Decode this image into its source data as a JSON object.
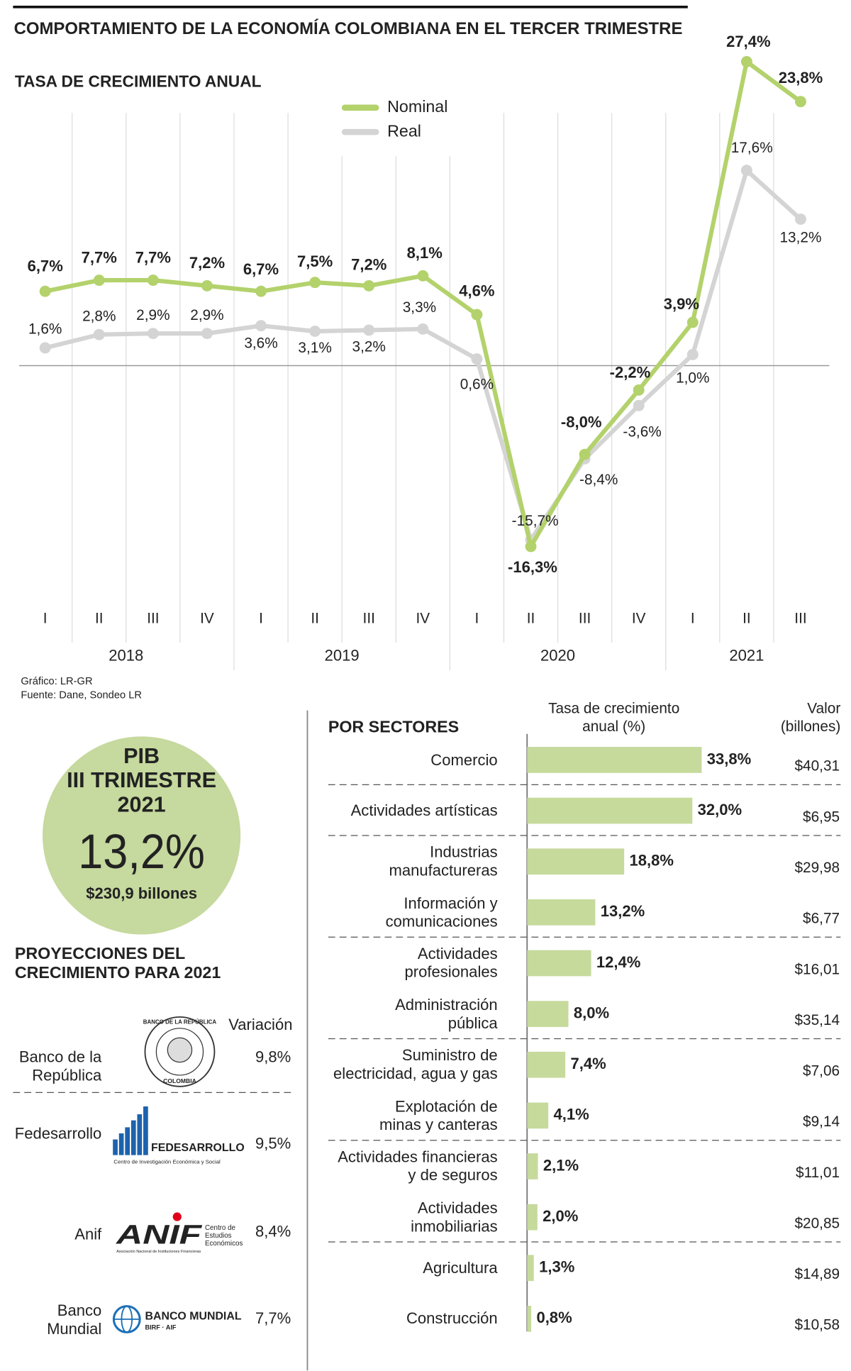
{
  "title": "COMPORTAMIENTO DE LA ECONOMÍA COLOMBIANA EN EL TERCER TRIMESTRE",
  "chart_data": [
    {
      "type": "line",
      "title": "TASA DE CRECIMIENTO ANUAL",
      "categories": [
        "I",
        "II",
        "III",
        "IV",
        "I",
        "II",
        "III",
        "IV",
        "I",
        "II",
        "III",
        "IV",
        "I",
        "II",
        "III"
      ],
      "years": [
        "2018",
        "2019",
        "2020",
        "2021"
      ],
      "series": [
        {
          "name": "Nominal",
          "color": "#b3d26c",
          "values": [
            6.7,
            7.7,
            7.7,
            7.2,
            6.7,
            7.5,
            7.2,
            8.1,
            4.6,
            -16.3,
            -8.0,
            -2.2,
            3.9,
            27.4,
            23.8
          ],
          "value_labels": [
            "6,7%",
            "7,7%",
            "7,7%",
            "7,2%",
            "6,7%",
            "7,5%",
            "7,2%",
            "8,1%",
            "4,6%",
            "-16,3%",
            "-8,0%",
            "-2,2%",
            "3,9%",
            "27,4%",
            "23,8%"
          ]
        },
        {
          "name": "Real",
          "color": "#d4d4d4",
          "values": [
            1.6,
            2.8,
            2.9,
            2.9,
            3.6,
            3.1,
            3.2,
            3.3,
            0.6,
            -15.7,
            -8.4,
            -3.6,
            1.0,
            17.6,
            13.2
          ],
          "value_labels": [
            "1,6%",
            "2,8%",
            "2,9%",
            "2,9%",
            "3,6%",
            "3,1%",
            "3,2%",
            "3,3%",
            "0,6%",
            "-15,7%",
            "-8,4%",
            "-3,6%",
            "1,0%",
            "17,6%",
            "13,2%"
          ]
        }
      ]
    },
    {
      "type": "barh",
      "title": "POR SECTORES",
      "value_axis_title": "Tasa de crecimiento\nanual (%)",
      "amount_title": "Valor\n(billones)",
      "color": "#c6da9c",
      "categories": [
        "Comercio",
        "Actividades artísticas",
        "Industrias\nmanufactureras",
        "Información y\ncomunicaciones",
        "Actividades\nprofesionales",
        "Administración\npública",
        "Suministro de\nelectricidad, agua y gas",
        "Explotación de\nminas y canteras",
        "Actividades financieras\ny de seguros",
        "Actividades\ninmobiliarias",
        "Agricultura",
        "Construcción"
      ],
      "values": [
        33.8,
        32.0,
        18.8,
        13.2,
        12.4,
        8.0,
        7.4,
        4.1,
        2.1,
        2.0,
        1.3,
        0.8
      ],
      "value_labels": [
        "33,8%",
        "32,0%",
        "18,8%",
        "13,2%",
        "12,4%",
        "8,0%",
        "7,4%",
        "4,1%",
        "2,1%",
        "2,0%",
        "1,3%",
        "0,8%"
      ],
      "amounts": [
        "$40,31",
        "$6,95",
        "$29,98",
        "$6,77",
        "$16,01",
        "$35,14",
        "$7,06",
        "$9,14",
        "$11,01",
        "$20,85",
        "$14,89",
        "$10,58"
      ]
    }
  ],
  "credits": [
    "Gráfico: LR-GR",
    "Fuente: Dane, Sondeo LR"
  ],
  "pib": {
    "title": "PIB",
    "period": "III TRIMESTRE",
    "year": "2021",
    "growth": "13,2%",
    "amount": "$230,9 billones"
  },
  "projections": {
    "title": "PROYECCIONES DEL\nCRECIMIENTO PARA 2021",
    "column": "Variación",
    "rows": [
      {
        "name": "Banco de la\nRepública",
        "value": "9,8%",
        "logo": [
          "BANCO DE LA REPÚBLICA",
          "COLOMBIA"
        ]
      },
      {
        "name": "Fedesarrollo",
        "value": "9,5%",
        "logo": [
          "FEDESARROLLO",
          "Centro de Investigación Económica y Social"
        ]
      },
      {
        "name": "Anif",
        "value": "8,4%",
        "logo": [
          "ANIF",
          "Centro de\nEstudios\nEconómicos",
          "Asociación Nacional de Instituciones Financieras"
        ]
      },
      {
        "name": "Banco\nMundial",
        "value": "7,7%",
        "logo": [
          "BANCO MUNDIAL",
          "BIRF · AIF"
        ]
      }
    ]
  }
}
